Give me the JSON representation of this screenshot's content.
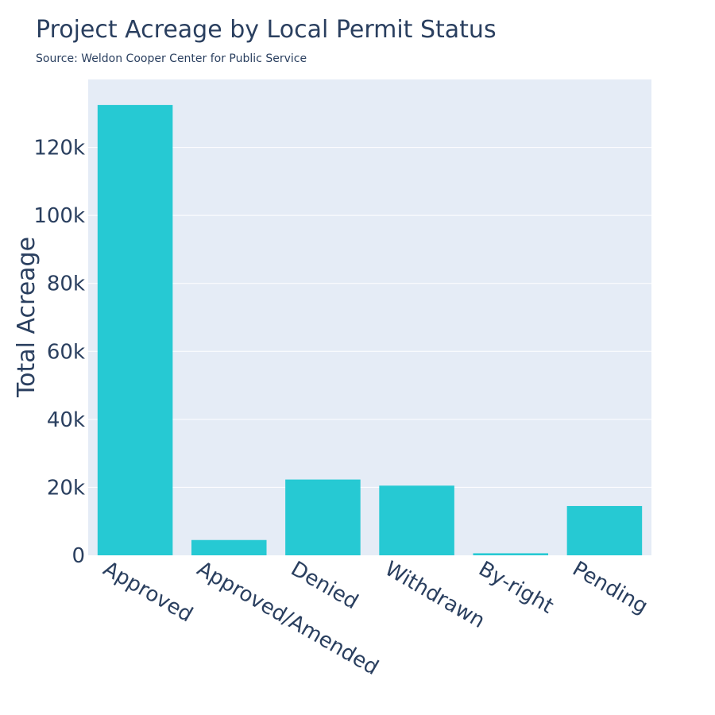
{
  "chart_data": {
    "type": "bar",
    "title": "Project Acreage by Local Permit Status",
    "subtitle": "Source: Weldon Cooper Center for Public Service",
    "xlabel": "",
    "ylabel": "Total Acreage",
    "categories": [
      "Approved",
      "Approved/Amended",
      "Denied",
      "Withdrawn",
      "By-right",
      "Pending"
    ],
    "values": [
      132500,
      4500,
      22300,
      20500,
      600,
      14500
    ],
    "ylim": [
      0,
      140000
    ],
    "yticks": [
      0,
      20000,
      40000,
      60000,
      80000,
      100000,
      120000
    ],
    "ytick_labels": [
      "0",
      "20k",
      "40k",
      "60k",
      "80k",
      "100k",
      "120k"
    ],
    "grid": true,
    "colors": {
      "bar": "#26c9d3",
      "plot_bg": "#e5ecf6",
      "grid": "#ffffff",
      "text": "#2a3f5f"
    }
  }
}
